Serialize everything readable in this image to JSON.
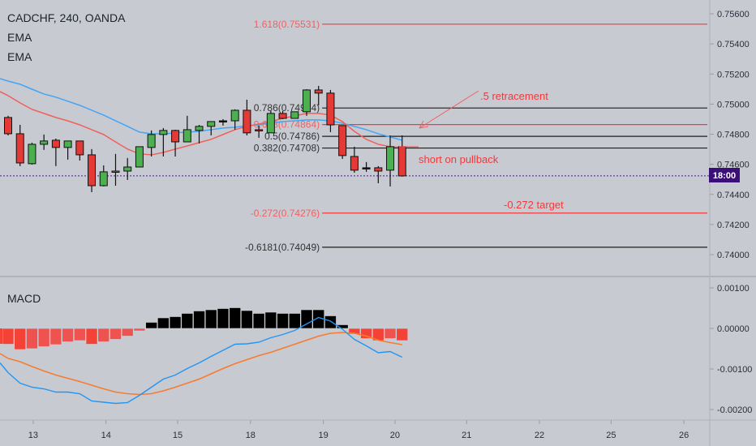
{
  "legend": {
    "symbol": "CADCHF, 240, OANDA",
    "ema1": "EMA",
    "ema2": "EMA",
    "macd": "MACD"
  },
  "colors": {
    "bg": "#c8cad2",
    "up": "#4caf50",
    "down": "#e53935",
    "ema_fast": "#f0605a",
    "ema_slow": "#42a5f5",
    "macd_line": "#2196f3",
    "signal_line": "#f57c30",
    "hist_pos": "#000000",
    "hist_neg": "#f44336",
    "hist_neg_light": "#ef5350",
    "price_line": "#4a1a8a",
    "price_label_bg": "#3b0f78"
  },
  "price_label": "18:00",
  "annotations": {
    "retracement": ".5 retracement",
    "short": "short on pullback",
    "target": "-0.272 target"
  },
  "chart_data": [
    {
      "type": "candlestick",
      "title": "CADCHF, 240, OANDA",
      "ylim": [
        0.739,
        0.7568
      ],
      "y_ticks": [
        "0.75600",
        "0.75400",
        "0.75200",
        "0.75000",
        "0.74800",
        "0.74600",
        "0.74400",
        "0.74200",
        "0.74000"
      ],
      "x_ticks": [
        {
          "label": "13",
          "bar": 2.1
        },
        {
          "label": "14",
          "bar": 8.2
        },
        {
          "label": "15",
          "bar": 14.2
        },
        {
          "label": "18",
          "bar": 20.3
        },
        {
          "label": "19",
          "bar": 26.4
        },
        {
          "label": "20",
          "bar": 32.4
        },
        {
          "label": "21",
          "bar": 38.4
        },
        {
          "label": "22",
          "bar": 44.5
        },
        {
          "label": "25",
          "bar": 50.5
        },
        {
          "label": "26",
          "bar": 56.6
        }
      ],
      "ohlc": [
        [
          0.74911,
          0.74922,
          0.74792,
          0.74803
        ],
        [
          0.74803,
          0.74862,
          0.74588,
          0.74609
        ],
        [
          0.74604,
          0.74744,
          0.74598,
          0.74733
        ],
        [
          0.74733,
          0.74798,
          0.74696,
          0.74755
        ],
        [
          0.7476,
          0.74771,
          0.74588,
          0.74712
        ],
        [
          0.74712,
          0.74755,
          0.74631,
          0.74755
        ],
        [
          0.74755,
          0.74755,
          0.74625,
          0.74663
        ],
        [
          0.74663,
          0.74701,
          0.74415,
          0.74458
        ],
        [
          0.74458,
          0.74593,
          0.74453,
          0.7455
        ],
        [
          0.7455,
          0.74669,
          0.74458,
          0.74555
        ],
        [
          0.74555,
          0.74642,
          0.74496,
          0.74582
        ],
        [
          0.74582,
          0.74717,
          0.74582,
          0.74717
        ],
        [
          0.74712,
          0.74825,
          0.74652,
          0.74798
        ],
        [
          0.74798,
          0.74841,
          0.74652,
          0.74825
        ],
        [
          0.74825,
          0.7483,
          0.74652,
          0.74749
        ],
        [
          0.74749,
          0.74922,
          0.74749,
          0.7483
        ],
        [
          0.74825,
          0.74862,
          0.74739,
          0.74852
        ],
        [
          0.74852,
          0.74884,
          0.74792,
          0.74884
        ],
        [
          0.74889,
          0.749,
          0.74857,
          0.74889
        ],
        [
          0.74889,
          0.74965,
          0.7483,
          0.74959
        ],
        [
          0.74959,
          0.75029,
          0.74792,
          0.74809
        ],
        [
          0.7483,
          0.74857,
          0.74776,
          0.74825
        ],
        [
          0.74809,
          0.74954,
          0.74809,
          0.74938
        ],
        [
          0.74938,
          0.74954,
          0.749,
          0.74905
        ],
        [
          0.74905,
          0.74949,
          0.74905,
          0.74949
        ],
        [
          0.74949,
          0.75099,
          0.74922,
          0.75094
        ],
        [
          0.75094,
          0.75121,
          0.74992,
          0.75073
        ],
        [
          0.75073,
          0.75094,
          0.74814,
          0.74862
        ],
        [
          0.74857,
          0.74857,
          0.74636,
          0.74658
        ],
        [
          0.74652,
          0.74717,
          0.74544,
          0.74561
        ],
        [
          0.74577,
          0.74615,
          0.7455,
          0.74577
        ],
        [
          0.74577,
          0.74588,
          0.74474,
          0.74555
        ],
        [
          0.74561,
          0.74792,
          0.74453,
          0.74717
        ],
        [
          0.74717,
          0.74792,
          0.74518,
          0.74523
        ]
      ],
      "ema_slow": [
        0.75153,
        0.75132,
        0.75099,
        0.75067,
        0.75046,
        0.75019,
        0.74992,
        0.74959,
        0.74927,
        0.74889,
        0.74852,
        0.74814,
        0.74803,
        0.74803,
        0.74809,
        0.74814,
        0.74819,
        0.7483,
        0.74841,
        0.74846,
        0.74857,
        0.74862,
        0.74873,
        0.74884,
        0.74889,
        0.74895,
        0.74895,
        0.74889,
        0.74873,
        0.74852,
        0.7483,
        0.74803,
        0.74782,
        0.7476
      ],
      "ema_fast": [
        0.75056,
        0.75008,
        0.74965,
        0.74938,
        0.74911,
        0.74889,
        0.74862,
        0.7483,
        0.74798,
        0.74749,
        0.74701,
        0.74669,
        0.74663,
        0.74679,
        0.74701,
        0.74722,
        0.74744,
        0.74766,
        0.74798,
        0.7483,
        0.74852,
        0.74868,
        0.74884,
        0.74905,
        0.74922,
        0.74938,
        0.74938,
        0.74927,
        0.74884,
        0.74819,
        0.74766,
        0.74733,
        0.74717,
        0.74712
      ],
      "last_price": 0.74523,
      "fib_start_bar": 26.3,
      "fib_levels": [
        {
          "label": "1.618(0.75531)",
          "price": 0.75531,
          "color": "#f23a3a"
        },
        {
          "label": "0.786(0.74974)",
          "price": 0.74974,
          "color": "#1e1e1e"
        },
        {
          "label": "0.618(0.74864)",
          "price": 0.74864,
          "color": "#f23a3a"
        },
        {
          "label": "0.5(0.74786)",
          "price": 0.74786,
          "color": "#1e1e1e"
        },
        {
          "label": "0.382(0.74708)",
          "price": 0.74708,
          "color": "#1e1e1e"
        },
        {
          "label": "-0.272(0.74276)",
          "price": 0.74276,
          "color": "#f23a3a"
        },
        {
          "label": "-0.6181(0.74049)",
          "price": 0.74049,
          "color": "#1e1e1e"
        }
      ]
    },
    {
      "type": "macd",
      "title": "MACD",
      "y_ticks": [
        "0.00100",
        "0.00000",
        "-0.00100",
        "-0.00200"
      ],
      "histogram": [
        -0.00039,
        -0.00052,
        -0.0005,
        -0.00045,
        -0.0004,
        -0.00033,
        -0.0003,
        -0.00039,
        -0.00033,
        -0.00027,
        -0.00019,
        -6e-05,
        0.00015,
        0.00026,
        0.00029,
        0.00037,
        0.00043,
        0.00046,
        0.00049,
        0.00051,
        0.00044,
        0.00037,
        0.0004,
        0.00037,
        0.00037,
        0.00046,
        0.00046,
        0.00031,
        9e-05,
        -0.00014,
        -0.00025,
        -0.0003,
        -0.00025,
        -0.0003
      ],
      "macd": [
        -0.00109,
        -0.00135,
        -0.00145,
        -0.00149,
        -0.00157,
        -0.00157,
        -0.00161,
        -0.00179,
        -0.00182,
        -0.00185,
        -0.00183,
        -0.00165,
        -0.00145,
        -0.00125,
        -0.00115,
        -0.00099,
        -0.00085,
        -0.00069,
        -0.00054,
        -0.00039,
        -0.00038,
        -0.00034,
        -0.00023,
        -0.00015,
        -5e-05,
        0.00011,
        0.00027,
        0.00018,
        -2e-05,
        -0.00027,
        -0.00043,
        -0.0006,
        -0.00057,
        -0.00071
      ],
      "signal": [
        -0.00074,
        -0.00082,
        -0.00094,
        -0.00105,
        -0.00115,
        -0.00123,
        -0.00131,
        -0.0014,
        -0.00149,
        -0.00157,
        -0.00161,
        -0.00163,
        -0.00161,
        -0.00154,
        -0.00145,
        -0.00135,
        -0.00125,
        -0.00112,
        -0.00099,
        -0.00087,
        -0.00077,
        -0.00067,
        -0.00059,
        -0.00049,
        -0.00039,
        -0.00029,
        -0.00019,
        -0.00012,
        -0.0001,
        -0.00012,
        -0.00019,
        -0.00029,
        -0.00035,
        -0.0004
      ]
    }
  ]
}
